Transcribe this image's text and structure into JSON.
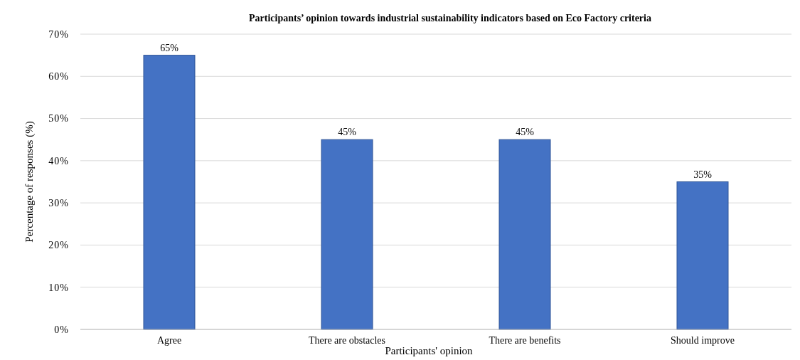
{
  "chart_data": {
    "type": "bar",
    "title": "Participants’ opinion towards industrial sustainability indicators based on Eco Factory criteria",
    "xlabel": "Participants' opinion",
    "ylabel": "Percentage of responses (%)",
    "categories": [
      "Agree",
      "There are obstacles",
      "There are benefits",
      "Should improve"
    ],
    "values": [
      65,
      45,
      45,
      35
    ],
    "value_labels": [
      "65%",
      "45%",
      "45%",
      "35%"
    ],
    "color": "#4472c4",
    "ylim": [
      0,
      70
    ],
    "yticks": [
      {
        "value": 0,
        "label": "0%"
      },
      {
        "value": 10,
        "label": "10%"
      },
      {
        "value": 20,
        "label": "20%"
      },
      {
        "value": 30,
        "label": "30%"
      },
      {
        "value": 40,
        "label": "40%"
      },
      {
        "value": 50,
        "label": "50%"
      },
      {
        "value": 60,
        "label": "60%"
      },
      {
        "value": 70,
        "label": "70%"
      }
    ],
    "grid": "y"
  }
}
